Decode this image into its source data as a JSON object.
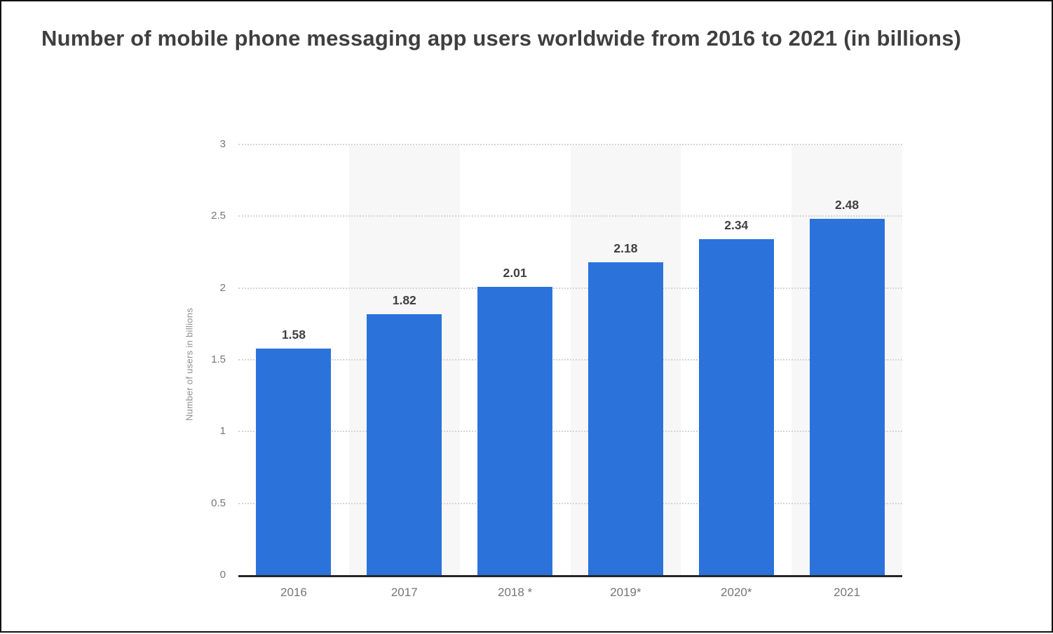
{
  "header": {
    "title": "Number of mobile phone messaging app users worldwide from 2016 to 2021 (in billions)"
  },
  "chart_data": {
    "type": "bar",
    "title": "Number of mobile phone messaging app users worldwide from 2016 to 2021 (in billions)",
    "categories": [
      "2016",
      "2017",
      "2018 *",
      "2019*",
      "2020*",
      "2021"
    ],
    "values": [
      1.58,
      1.82,
      2.01,
      2.18,
      2.34,
      2.48
    ],
    "value_labels": [
      "1.58",
      "1.82",
      "2.01",
      "2.18",
      "2.34",
      "2.48"
    ],
    "xlabel": "",
    "ylabel": "Number of users in billions",
    "ylim": [
      0,
      3
    ],
    "yticks": [
      0,
      0.5,
      1,
      1.5,
      2,
      2.5,
      3
    ],
    "ytick_labels": [
      "0",
      "0.5",
      "1",
      "1.5",
      "2",
      "2.5",
      "3"
    ],
    "grid": "horizontal-dotted",
    "legend": "none",
    "colors": {
      "bar": "#2b73db",
      "column_band": "#f7f7f7",
      "gridline": "#d4d4d4",
      "axis_line": "#262626",
      "title_text": "#3f3f3f",
      "value_label_text": "#404040",
      "tick_text": "#757575",
      "axis_title_text": "#8e8e8e"
    },
    "striped_column_indexes": [
      1,
      3,
      5
    ]
  }
}
